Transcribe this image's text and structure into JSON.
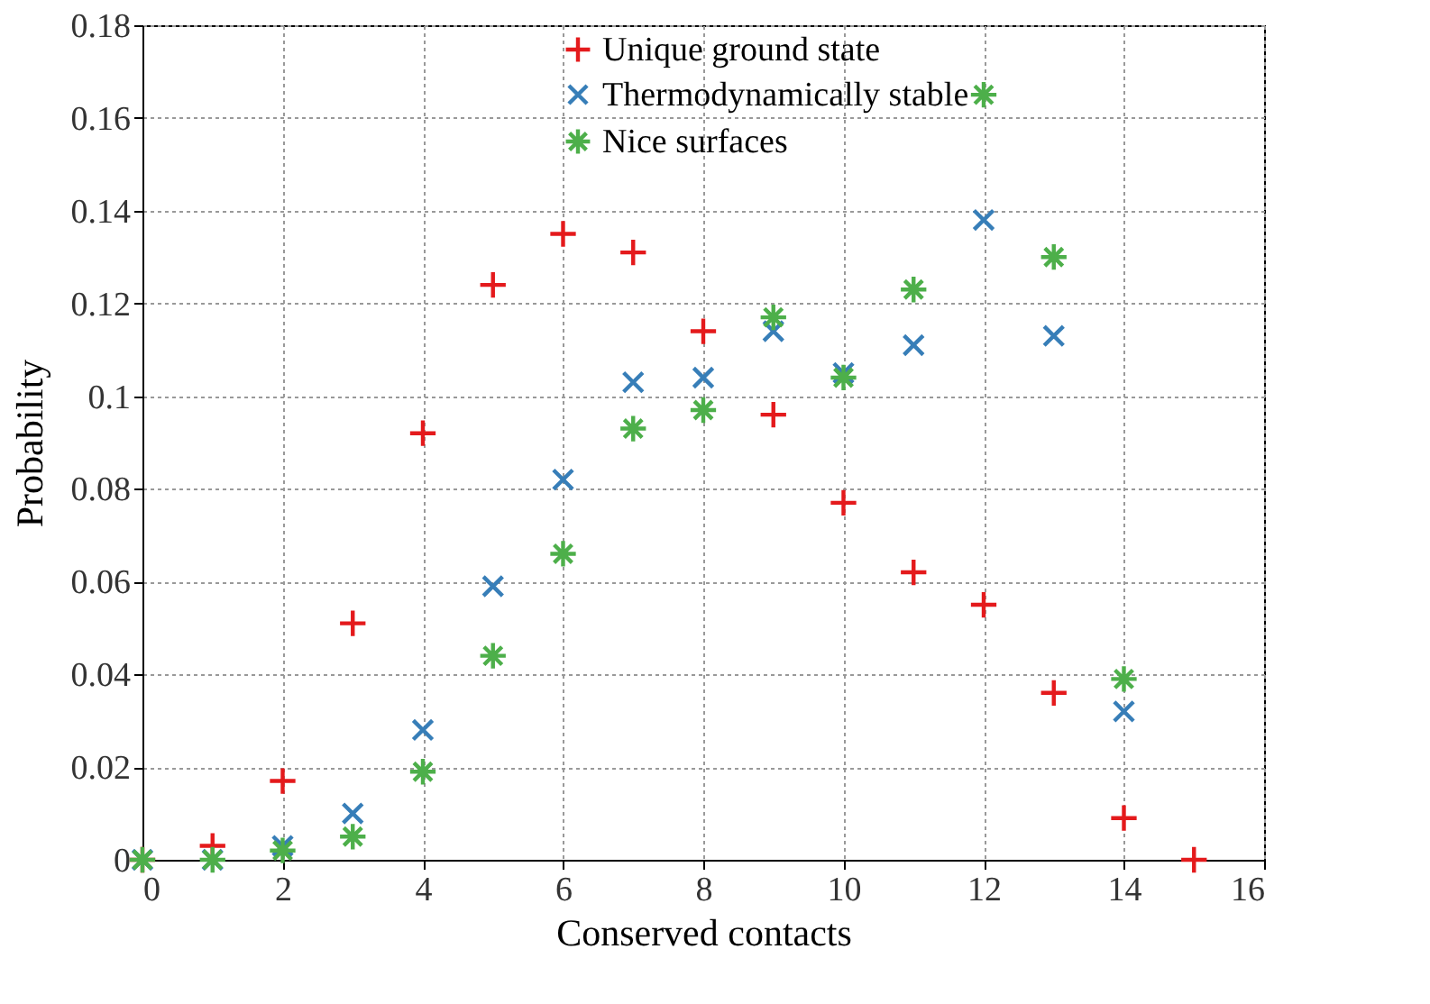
{
  "chart_data": {
    "type": "scatter",
    "xlabel": "Conserved contacts",
    "ylabel": "Probability",
    "x": [
      0,
      1,
      2,
      3,
      4,
      5,
      6,
      7,
      8,
      9,
      10,
      11,
      12,
      13,
      14,
      15
    ],
    "series": [
      {
        "name": "Unique ground state",
        "color": "#e41a1c",
        "marker": "cross",
        "values": [
          0,
          0.003,
          0.017,
          0.051,
          0.092,
          0.124,
          0.135,
          0.131,
          0.114,
          0.096,
          0.077,
          0.062,
          0.055,
          0.036,
          0.009,
          0
        ]
      },
      {
        "name": "Thermodynamically stable",
        "color": "#377eb8",
        "marker": "x",
        "x": [
          0,
          1,
          2,
          3,
          4,
          5,
          6,
          7,
          8,
          9,
          10,
          11,
          12,
          13,
          14
        ],
        "values": [
          0,
          0,
          0.003,
          0.01,
          0.028,
          0.059,
          0.082,
          0.103,
          0.104,
          0.114,
          0.105,
          0.111,
          0.138,
          0.113,
          0.032
        ]
      },
      {
        "name": "Nice surfaces",
        "color": "#4daf4a",
        "x": [
          0,
          1,
          2,
          3,
          4,
          5,
          6,
          7,
          8,
          9,
          10,
          11,
          12,
          13,
          14
        ],
        "values": [
          0,
          0,
          0.002,
          0.005,
          0.019,
          0.044,
          0.066,
          0.093,
          0.097,
          0.117,
          0.104,
          0.123,
          0.165,
          0.13,
          0.039
        ]
      }
    ],
    "xlim": [
      0,
      16
    ],
    "xticks": [
      0,
      2,
      4,
      6,
      8,
      10,
      12,
      14,
      16
    ],
    "ylim": [
      0,
      0.18
    ],
    "yticks": [
      0,
      0.02,
      0.04,
      0.06,
      0.08,
      0.1,
      0.12,
      0.14,
      0.16,
      0.18
    ],
    "grid": true,
    "legend": "top right"
  }
}
